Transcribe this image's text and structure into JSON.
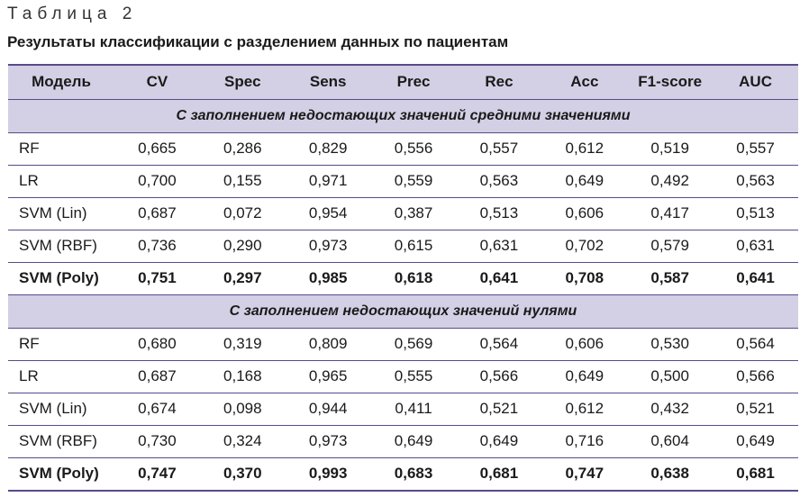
{
  "table_label": "Таблица 2",
  "table_title": "Результаты классификации с разделением данных по пациентам",
  "columns": [
    "Модель",
    "CV",
    "Spec",
    "Sens",
    "Prec",
    "Rec",
    "Acc",
    "F1-score",
    "AUC"
  ],
  "sections": [
    {
      "title": "С заполнением недостающих значений средними значениями",
      "rows": [
        {
          "model": "RF",
          "values": [
            "0,665",
            "0,286",
            "0,829",
            "0,556",
            "0,557",
            "0,612",
            "0,519",
            "0,557"
          ],
          "bold": false
        },
        {
          "model": "LR",
          "values": [
            "0,700",
            "0,155",
            "0,971",
            "0,559",
            "0,563",
            "0,649",
            "0,492",
            "0,563"
          ],
          "bold": false
        },
        {
          "model": "SVM (Lin)",
          "values": [
            "0,687",
            "0,072",
            "0,954",
            "0,387",
            "0,513",
            "0,606",
            "0,417",
            "0,513"
          ],
          "bold": false
        },
        {
          "model": "SVM (RBF)",
          "values": [
            "0,736",
            "0,290",
            "0,973",
            "0,615",
            "0,631",
            "0,702",
            "0,579",
            "0,631"
          ],
          "bold": false
        },
        {
          "model": "SVM (Poly)",
          "values": [
            "0,751",
            "0,297",
            "0,985",
            "0,618",
            "0,641",
            "0,708",
            "0,587",
            "0,641"
          ],
          "bold": true
        }
      ]
    },
    {
      "title": "С заполнением недостающих значений нулями",
      "rows": [
        {
          "model": "RF",
          "values": [
            "0,680",
            "0,319",
            "0,809",
            "0,569",
            "0,564",
            "0,606",
            "0,530",
            "0,564"
          ],
          "bold": false
        },
        {
          "model": "LR",
          "values": [
            "0,687",
            "0,168",
            "0,965",
            "0,555",
            "0,566",
            "0,649",
            "0,500",
            "0,566"
          ],
          "bold": false
        },
        {
          "model": "SVM (Lin)",
          "values": [
            "0,674",
            "0,098",
            "0,944",
            "0,411",
            "0,521",
            "0,612",
            "0,432",
            "0,521"
          ],
          "bold": false
        },
        {
          "model": "SVM (RBF)",
          "values": [
            "0,730",
            "0,324",
            "0,973",
            "0,649",
            "0,649",
            "0,716",
            "0,604",
            "0,649"
          ],
          "bold": false
        },
        {
          "model": "SVM (Poly)",
          "values": [
            "0,747",
            "0,370",
            "0,993",
            "0,683",
            "0,681",
            "0,747",
            "0,638",
            "0,681"
          ],
          "bold": true
        }
      ]
    }
  ]
}
